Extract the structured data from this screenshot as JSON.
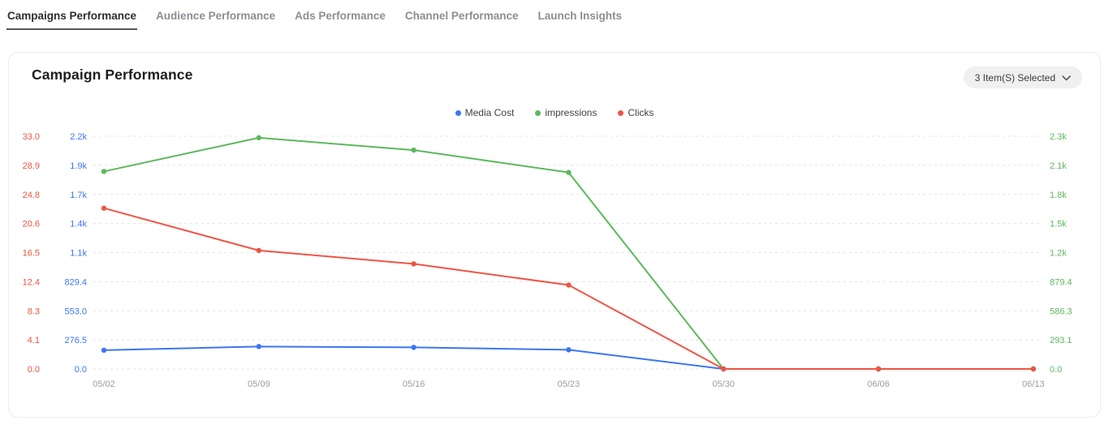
{
  "tabs": {
    "items": [
      {
        "label": "Campaigns Performance",
        "active": true
      },
      {
        "label": "Audience Performance",
        "active": false
      },
      {
        "label": "Ads Performance",
        "active": false
      },
      {
        "label": "Channel Performance",
        "active": false
      },
      {
        "label": "Launch Insights",
        "active": false
      }
    ]
  },
  "card": {
    "title": "Campaign Performance",
    "selector": {
      "label": "3 Item(S) Selected",
      "icon": "chevron-down-icon"
    }
  },
  "chart_data": {
    "type": "line",
    "title": "Campaign Performance",
    "categories": [
      "05/02",
      "05/09",
      "05/16",
      "05/23",
      "05/30",
      "06/06",
      "06/13"
    ],
    "series": [
      {
        "name": "Media Cost",
        "axis": "left_inner",
        "color": "#3b76f0",
        "values": [
          178,
          213,
          205,
          182,
          0,
          0,
          0
        ]
      },
      {
        "name": "impressions",
        "axis": "right",
        "color": "#5cb85c",
        "values": [
          1990,
          2330,
          2205,
          1980,
          0,
          0,
          0
        ]
      },
      {
        "name": "Clicks",
        "axis": "left_outer",
        "color": "#ee5544",
        "values": [
          22.8,
          16.8,
          14.9,
          11.9,
          0,
          0,
          0
        ]
      }
    ],
    "axes": {
      "left_outer": {
        "name": "Clicks",
        "color": "#ee5544",
        "min": 0,
        "max": 33,
        "ticks_top_to_bottom": [
          "33.0",
          "28.9",
          "24.8",
          "20.6",
          "16.5",
          "12.4",
          "8.3",
          "4.1",
          "0.0"
        ]
      },
      "left_inner": {
        "name": "Media Cost",
        "color": "#3b76f0",
        "min": 0,
        "max": 2212,
        "ticks_top_to_bottom": [
          "2.2k",
          "1.9k",
          "1.7k",
          "1.4k",
          "1.1k",
          "829.4",
          "553.0",
          "276.5",
          "0.0"
        ]
      },
      "right": {
        "name": "impressions",
        "color": "#5cb85c",
        "min": 0,
        "max": 2345,
        "ticks_top_to_bottom": [
          "2.3k",
          "2.1k",
          "1.8k",
          "1.5k",
          "1.2k",
          "879.4",
          "586.3",
          "293.1",
          "0.0"
        ]
      }
    },
    "grid": "horizontal-dashed",
    "grid_color": "#e4e4e4",
    "x_label_color": "#9a9da1",
    "legend_position": "top-center"
  }
}
